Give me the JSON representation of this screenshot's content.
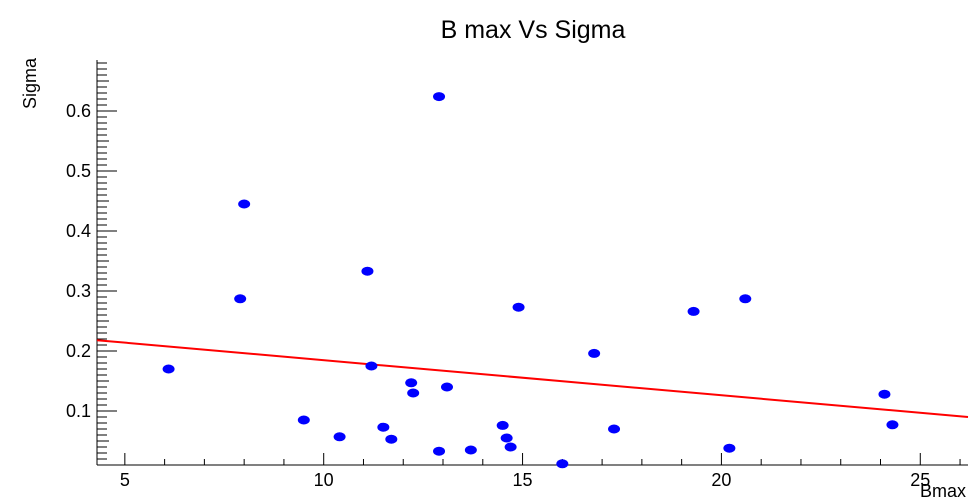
{
  "chart_data": {
    "type": "scatter",
    "title": "B max Vs Sigma",
    "xlabel": "Bmax",
    "ylabel": "Sigma",
    "xlim": [
      4.3,
      26.2
    ],
    "ylim": [
      0.01,
      0.685
    ],
    "x_ticks": [
      5,
      10,
      15,
      20,
      25
    ],
    "y_ticks": [
      0.1,
      0.2,
      0.3,
      0.4,
      0.5,
      0.6
    ],
    "x_tick_labels": [
      "5",
      "10",
      "15",
      "20",
      "25"
    ],
    "y_tick_labels": [
      "0.1",
      "0.2",
      "0.3",
      "0.4",
      "0.5",
      "0.6"
    ],
    "grid": false,
    "marker_color": "#0000ff",
    "fit_color": "#ff0000",
    "points": [
      {
        "x": 6.1,
        "y": 0.17
      },
      {
        "x": 7.9,
        "y": 0.287
      },
      {
        "x": 8.0,
        "y": 0.445
      },
      {
        "x": 9.5,
        "y": 0.085
      },
      {
        "x": 10.4,
        "y": 0.057
      },
      {
        "x": 11.1,
        "y": 0.333
      },
      {
        "x": 11.2,
        "y": 0.175
      },
      {
        "x": 11.5,
        "y": 0.073
      },
      {
        "x": 11.7,
        "y": 0.053
      },
      {
        "x": 12.2,
        "y": 0.147
      },
      {
        "x": 12.25,
        "y": 0.13
      },
      {
        "x": 12.9,
        "y": 0.624
      },
      {
        "x": 12.9,
        "y": 0.033
      },
      {
        "x": 13.1,
        "y": 0.14
      },
      {
        "x": 13.7,
        "y": 0.035
      },
      {
        "x": 14.5,
        "y": 0.076
      },
      {
        "x": 14.6,
        "y": 0.055
      },
      {
        "x": 14.7,
        "y": 0.04
      },
      {
        "x": 14.9,
        "y": 0.273
      },
      {
        "x": 16.0,
        "y": 0.012
      },
      {
        "x": 16.8,
        "y": 0.196
      },
      {
        "x": 17.3,
        "y": 0.07
      },
      {
        "x": 19.3,
        "y": 0.266
      },
      {
        "x": 20.2,
        "y": 0.038
      },
      {
        "x": 20.6,
        "y": 0.287
      },
      {
        "x": 24.1,
        "y": 0.128
      },
      {
        "x": 24.3,
        "y": 0.077
      }
    ],
    "fit_line": {
      "x": [
        4.3,
        26.2
      ],
      "y": [
        0.218,
        0.09
      ]
    }
  }
}
